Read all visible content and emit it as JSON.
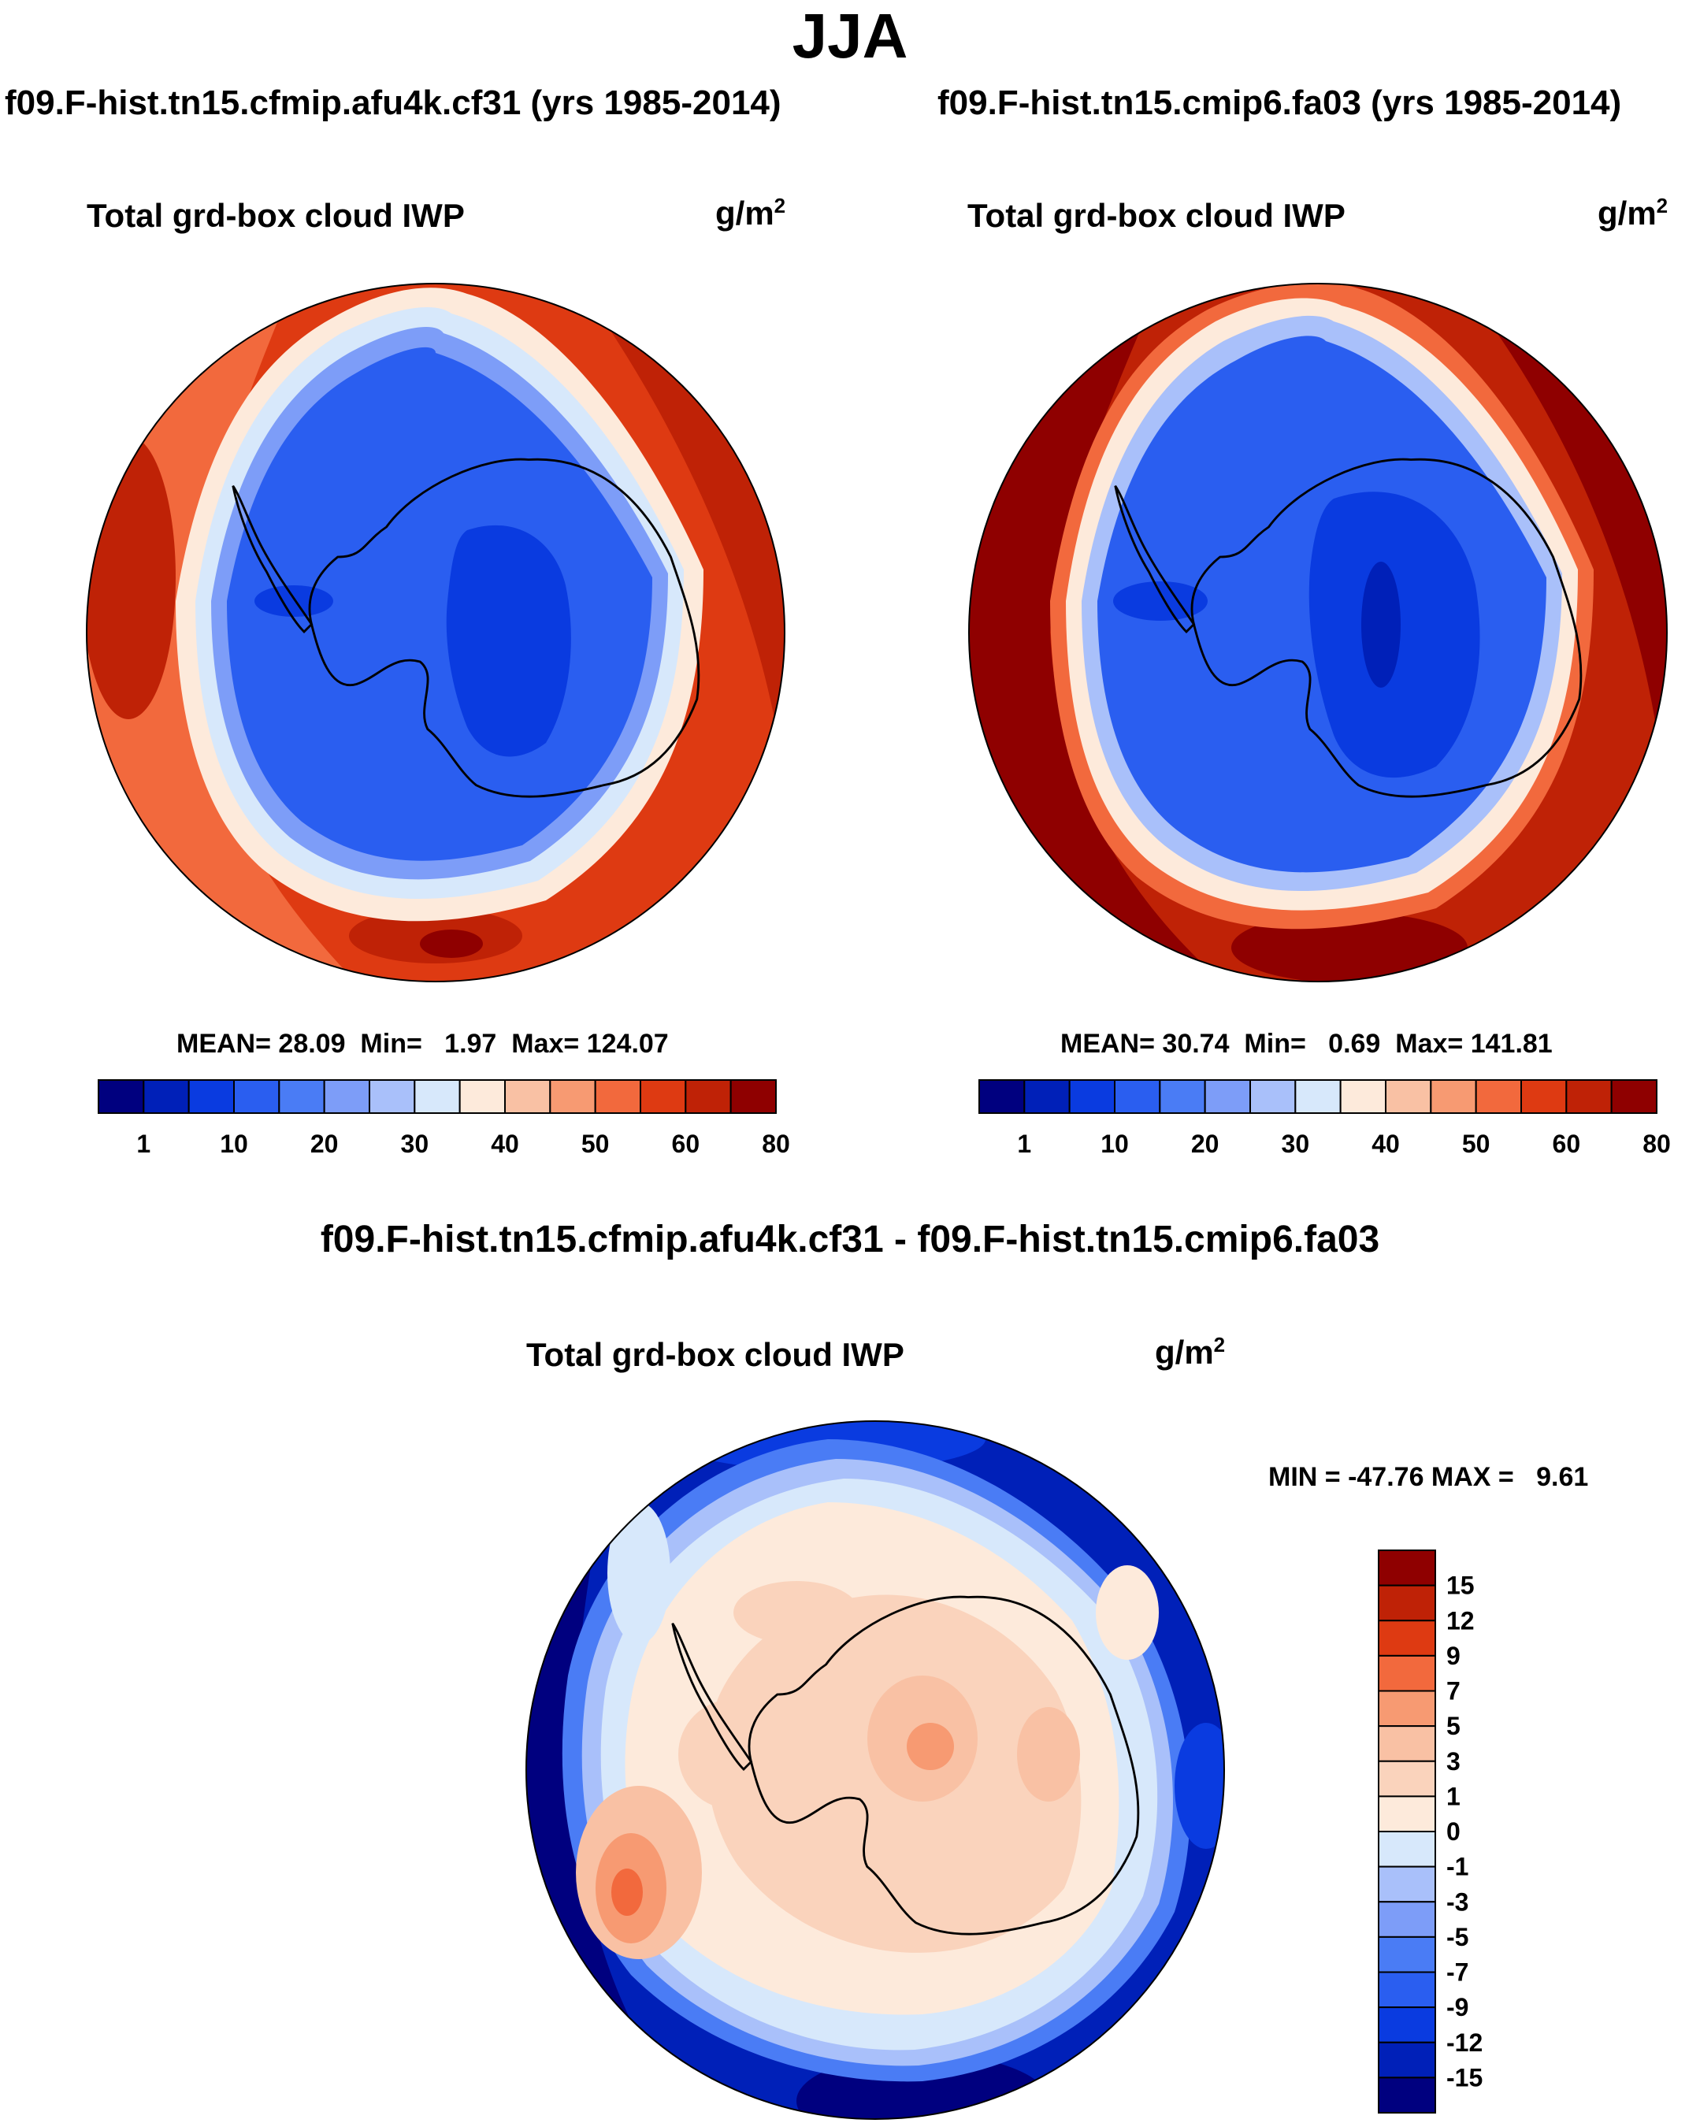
{
  "title": "JJA",
  "panels": [
    {
      "case": "f09.F-hist.tn15.cfmip.afu4k.cf31 (yrs 1985-2014)",
      "variable": "Total grd-box cloud IWP",
      "units": "g/m",
      "units_sup": "2",
      "stats": {
        "mean_label": "MEAN=",
        "mean": "28.09",
        "min_label": "Min=",
        "min": "1.97",
        "max_label": "Max=",
        "max": "124.07"
      }
    },
    {
      "case": "f09.F-hist.tn15.cmip6.fa03 (yrs 1985-2014)",
      "variable": "Total grd-box cloud IWP",
      "units": "g/m",
      "units_sup": "2",
      "stats": {
        "mean_label": "MEAN=",
        "mean": "30.74",
        "min_label": "Min=",
        "min": "0.69",
        "max_label": "Max=",
        "max": "141.81"
      }
    }
  ],
  "diff": {
    "title": "f09.F-hist.tn15.cfmip.afu4k.cf31 - f09.F-hist.tn15.cmip6.fa03",
    "variable": "Total grd-box cloud IWP",
    "units": "g/m",
    "units_sup": "2",
    "minmax": "MIN = -47.76 MAX =   9.61"
  },
  "chart_data": [
    {
      "type": "heatmap",
      "projection": "south-polar-stereographic",
      "title": "f09.F-hist.tn15.cfmip.afu4k.cf31 (yrs 1985-2014)",
      "variable": "Total grd-box cloud IWP",
      "units": "g/m2",
      "colorbar_ticks": [
        "1",
        "10",
        "20",
        "30",
        "40",
        "50",
        "60",
        "80"
      ],
      "colorbar_colors": [
        "#00007f",
        "#0020b8",
        "#0a3be0",
        "#2a5ef0",
        "#4a7cf5",
        "#7d9df8",
        "#a9c0fa",
        "#d7e8fb",
        "#fdeadb",
        "#f9c1a4",
        "#f79a72",
        "#f2693d",
        "#de3a12",
        "#bf2206",
        "#8f0000"
      ],
      "mean": 28.09,
      "min": 1.97,
      "max": 124.07
    },
    {
      "type": "heatmap",
      "projection": "south-polar-stereographic",
      "title": "f09.F-hist.tn15.cmip6.fa03 (yrs 1985-2014)",
      "variable": "Total grd-box cloud IWP",
      "units": "g/m2",
      "colorbar_ticks": [
        "1",
        "10",
        "20",
        "30",
        "40",
        "50",
        "60",
        "80"
      ],
      "colorbar_colors": [
        "#00007f",
        "#0020b8",
        "#0a3be0",
        "#2a5ef0",
        "#4a7cf5",
        "#7d9df8",
        "#a9c0fa",
        "#d7e8fb",
        "#fdeadb",
        "#f9c1a4",
        "#f79a72",
        "#f2693d",
        "#de3a12",
        "#bf2206",
        "#8f0000"
      ],
      "mean": 30.74,
      "min": 0.69,
      "max": 141.81
    },
    {
      "type": "heatmap",
      "projection": "south-polar-stereographic",
      "title": "f09.F-hist.tn15.cfmip.afu4k.cf31 - f09.F-hist.tn15.cmip6.fa03",
      "variable": "Total grd-box cloud IWP",
      "units": "g/m2",
      "colorbar_ticks": [
        "15",
        "12",
        "9",
        "7",
        "5",
        "3",
        "1",
        "0",
        "-1",
        "-3",
        "-5",
        "-7",
        "-9",
        "-12",
        "-15"
      ],
      "colorbar_colors": [
        "#8f0000",
        "#bf2206",
        "#de3a12",
        "#f2693d",
        "#f79a72",
        "#f9c1a4",
        "#fad3bc",
        "#fdeadb",
        "#d7e8fb",
        "#a9c0fa",
        "#7d9df8",
        "#4a7cf5",
        "#2a5ef0",
        "#0a3be0",
        "#0020b8",
        "#00007f"
      ],
      "min": -47.76,
      "max": 9.61
    }
  ]
}
